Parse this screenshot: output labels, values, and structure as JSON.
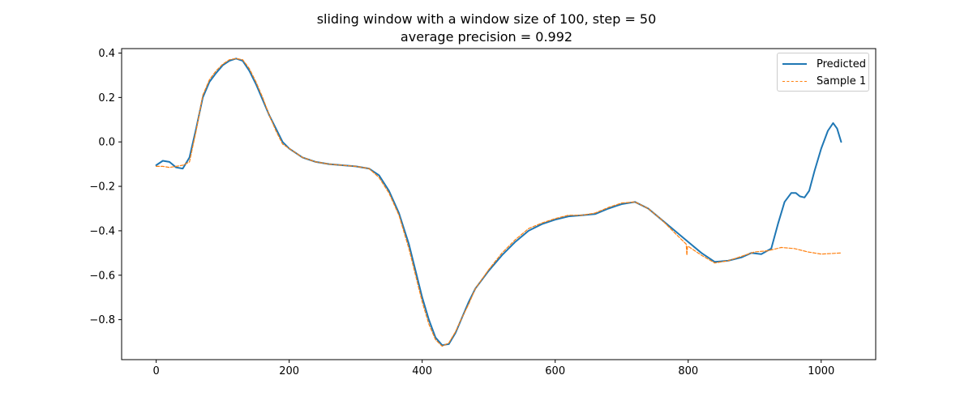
{
  "chart_data": {
    "type": "line",
    "title": "sliding window with a window size of 100, step = 50",
    "subtitle": "average precision = 0.992",
    "xlabel": "",
    "ylabel": "",
    "xlim": [
      -52,
      1082
    ],
    "ylim": [
      -0.98,
      0.42
    ],
    "xticks": [
      0,
      200,
      400,
      600,
      800,
      1000
    ],
    "xtick_labels": [
      "0",
      "200",
      "400",
      "600",
      "800",
      "1000"
    ],
    "yticks": [
      0.4,
      0.2,
      0.0,
      -0.2,
      -0.4,
      -0.6,
      -0.8
    ],
    "ytick_labels": [
      "0.4",
      "0.2",
      "0.0",
      "−0.2",
      "−0.4",
      "−0.6",
      "−0.8"
    ],
    "grid": false,
    "legend_position": "top-right",
    "series": [
      {
        "name": "Predicted",
        "color": "#1f77b4",
        "style": "solid",
        "x": [
          0,
          10,
          20,
          30,
          40,
          50,
          60,
          70,
          80,
          90,
          100,
          110,
          120,
          130,
          140,
          150,
          160,
          170,
          180,
          190,
          200,
          220,
          240,
          260,
          280,
          300,
          320,
          335,
          350,
          365,
          380,
          390,
          400,
          410,
          420,
          430,
          440,
          450,
          460,
          470,
          480,
          500,
          520,
          540,
          560,
          580,
          600,
          620,
          640,
          660,
          680,
          700,
          720,
          740,
          760,
          780,
          800,
          820,
          840,
          860,
          880,
          895,
          910,
          925,
          935,
          945,
          955,
          962,
          968,
          975,
          982,
          990,
          1000,
          1010,
          1018,
          1024,
          1030
        ],
        "y": [
          -0.105,
          -0.085,
          -0.09,
          -0.115,
          -0.12,
          -0.07,
          0.06,
          0.2,
          0.27,
          0.31,
          0.345,
          0.365,
          0.375,
          0.365,
          0.32,
          0.26,
          0.19,
          0.12,
          0.06,
          0.0,
          -0.03,
          -0.07,
          -0.09,
          -0.1,
          -0.105,
          -0.11,
          -0.12,
          -0.15,
          -0.22,
          -0.32,
          -0.46,
          -0.58,
          -0.7,
          -0.8,
          -0.88,
          -0.915,
          -0.91,
          -0.86,
          -0.79,
          -0.72,
          -0.66,
          -0.58,
          -0.51,
          -0.45,
          -0.4,
          -0.37,
          -0.35,
          -0.335,
          -0.33,
          -0.325,
          -0.3,
          -0.28,
          -0.27,
          -0.3,
          -0.35,
          -0.4,
          -0.45,
          -0.5,
          -0.54,
          -0.535,
          -0.52,
          -0.5,
          -0.505,
          -0.48,
          -0.37,
          -0.27,
          -0.23,
          -0.23,
          -0.245,
          -0.25,
          -0.22,
          -0.13,
          -0.03,
          0.05,
          0.085,
          0.06,
          0.0
        ]
      },
      {
        "name": "Sample 1",
        "color": "#ff7f0e",
        "style": "dashed",
        "x": [
          0,
          10,
          20,
          30,
          40,
          50,
          60,
          70,
          80,
          90,
          100,
          110,
          120,
          130,
          140,
          150,
          160,
          170,
          180,
          190,
          200,
          220,
          240,
          260,
          280,
          300,
          320,
          335,
          350,
          365,
          380,
          390,
          400,
          410,
          420,
          430,
          440,
          450,
          460,
          470,
          480,
          500,
          520,
          540,
          560,
          580,
          600,
          620,
          640,
          660,
          680,
          700,
          720,
          740,
          760,
          780,
          797,
          798,
          799,
          800,
          820,
          840,
          860,
          880,
          900,
          920,
          940,
          960,
          980,
          1000,
          1030
        ],
        "y": [
          -0.11,
          -0.11,
          -0.115,
          -0.11,
          -0.105,
          -0.09,
          0.05,
          0.21,
          0.28,
          0.32,
          0.35,
          0.37,
          0.375,
          0.37,
          0.33,
          0.27,
          0.2,
          0.12,
          0.05,
          -0.01,
          -0.03,
          -0.07,
          -0.09,
          -0.1,
          -0.105,
          -0.11,
          -0.12,
          -0.16,
          -0.23,
          -0.33,
          -0.48,
          -0.6,
          -0.72,
          -0.82,
          -0.89,
          -0.92,
          -0.905,
          -0.855,
          -0.79,
          -0.73,
          -0.66,
          -0.575,
          -0.5,
          -0.44,
          -0.39,
          -0.365,
          -0.345,
          -0.33,
          -0.33,
          -0.32,
          -0.295,
          -0.275,
          -0.27,
          -0.3,
          -0.35,
          -0.41,
          -0.46,
          -0.51,
          -0.47,
          -0.47,
          -0.51,
          -0.545,
          -0.535,
          -0.515,
          -0.495,
          -0.49,
          -0.475,
          -0.48,
          -0.495,
          -0.505,
          -0.5
        ]
      }
    ]
  }
}
